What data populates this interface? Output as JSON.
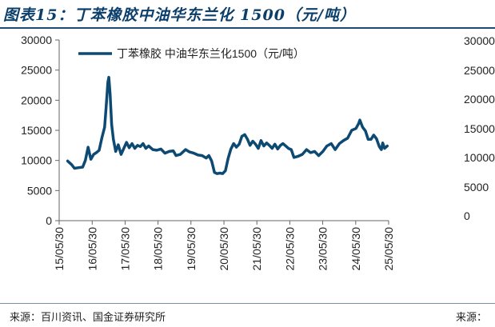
{
  "figure": {
    "title": "图表15：丁苯橡胶中油华东兰化 1500（元/吨）",
    "source_left": "来源：百川资讯、国金证券研究所",
    "source_right": "来源："
  },
  "ghost_axis": {
    "labels": [
      "30000",
      "25000",
      "20000",
      "15000",
      "10000",
      "5000",
      "0"
    ]
  },
  "chart_data": {
    "type": "line",
    "title": "",
    "xlabel": "",
    "ylabel": "",
    "ylim": [
      0,
      30000
    ],
    "xlim": [
      "2015-05-30",
      "2025-05-30"
    ],
    "yticks": [
      "0",
      "5000",
      "10000",
      "15000",
      "20000",
      "25000",
      "30000"
    ],
    "xticks": [
      "15/05/30",
      "16/05/30",
      "17/05/30",
      "18/05/30",
      "19/05/30",
      "20/05/30",
      "21/05/30",
      "22/05/30",
      "23/05/30",
      "24/05/30",
      "25/05/30"
    ],
    "grid": false,
    "legend": "top-left",
    "color": "#0d4a73",
    "series": [
      {
        "name": "丁苯橡胶 中油华东兰化1500（元/吨）",
        "points": [
          [
            "2015-09-01",
            9900
          ],
          [
            "2015-10-15",
            9300
          ],
          [
            "2015-11-15",
            8700
          ],
          [
            "2016-01-01",
            8800
          ],
          [
            "2016-02-15",
            8900
          ],
          [
            "2016-03-15",
            10000
          ],
          [
            "2016-04-15",
            12200
          ],
          [
            "2016-05-15",
            10200
          ],
          [
            "2016-06-15",
            11000
          ],
          [
            "2016-07-15",
            11300
          ],
          [
            "2016-08-15",
            11700
          ],
          [
            "2016-09-15",
            13800
          ],
          [
            "2016-10-15",
            15500
          ],
          [
            "2016-11-01",
            19000
          ],
          [
            "2016-11-20",
            23000
          ],
          [
            "2016-12-01",
            23800
          ],
          [
            "2016-12-15",
            21000
          ],
          [
            "2017-01-01",
            16000
          ],
          [
            "2017-01-20",
            13500
          ],
          [
            "2017-02-15",
            11500
          ],
          [
            "2017-03-15",
            12600
          ],
          [
            "2017-04-15",
            11000
          ],
          [
            "2017-05-15",
            12000
          ],
          [
            "2017-06-15",
            13000
          ],
          [
            "2017-07-15",
            12100
          ],
          [
            "2017-08-15",
            12800
          ],
          [
            "2017-09-15",
            12000
          ],
          [
            "2017-10-15",
            12500
          ],
          [
            "2017-11-15",
            12300
          ],
          [
            "2017-12-15",
            12800
          ],
          [
            "2018-01-15",
            12000
          ],
          [
            "2018-02-15",
            12400
          ],
          [
            "2018-04-01",
            11800
          ],
          [
            "2018-05-15",
            11700
          ],
          [
            "2018-07-01",
            11900
          ],
          [
            "2018-08-15",
            11200
          ],
          [
            "2018-10-01",
            11500
          ],
          [
            "2018-11-15",
            11600
          ],
          [
            "2018-12-15",
            10800
          ],
          [
            "2019-02-01",
            11000
          ],
          [
            "2019-04-01",
            11800
          ],
          [
            "2019-05-15",
            11400
          ],
          [
            "2019-07-01",
            11200
          ],
          [
            "2019-08-15",
            10900
          ],
          [
            "2019-10-01",
            10800
          ],
          [
            "2019-11-15",
            10400
          ],
          [
            "2019-12-15",
            10800
          ],
          [
            "2020-01-15",
            9900
          ],
          [
            "2020-02-15",
            8000
          ],
          [
            "2020-03-15",
            7800
          ],
          [
            "2020-04-15",
            7900
          ],
          [
            "2020-05-15",
            7800
          ],
          [
            "2020-06-15",
            8300
          ],
          [
            "2020-07-15",
            10300
          ],
          [
            "2020-08-15",
            11900
          ],
          [
            "2020-09-15",
            12800
          ],
          [
            "2020-10-15",
            12200
          ],
          [
            "2020-11-15",
            12700
          ],
          [
            "2020-12-15",
            14000
          ],
          [
            "2021-01-15",
            14300
          ],
          [
            "2021-02-15",
            13500
          ],
          [
            "2021-03-15",
            12500
          ],
          [
            "2021-04-15",
            13200
          ],
          [
            "2021-05-15",
            12700
          ],
          [
            "2021-06-15",
            12000
          ],
          [
            "2021-07-15",
            13300
          ],
          [
            "2021-08-15",
            12400
          ],
          [
            "2021-09-15",
            12900
          ],
          [
            "2021-10-15",
            12500
          ],
          [
            "2021-11-15",
            12000
          ],
          [
            "2021-12-15",
            12700
          ],
          [
            "2022-01-15",
            11900
          ],
          [
            "2022-02-15",
            12500
          ],
          [
            "2022-03-15",
            12800
          ],
          [
            "2022-04-15",
            12400
          ],
          [
            "2022-05-15",
            12000
          ],
          [
            "2022-06-15",
            11800
          ],
          [
            "2022-07-15",
            10500
          ],
          [
            "2022-09-01",
            10700
          ],
          [
            "2022-10-15",
            11000
          ],
          [
            "2022-12-01",
            11800
          ],
          [
            "2023-01-15",
            11300
          ],
          [
            "2023-03-01",
            11500
          ],
          [
            "2023-04-15",
            10800
          ],
          [
            "2023-06-01",
            11500
          ],
          [
            "2023-07-15",
            12400
          ],
          [
            "2023-09-01",
            12800
          ],
          [
            "2023-10-15",
            11800
          ],
          [
            "2023-12-01",
            12800
          ],
          [
            "2024-01-15",
            13300
          ],
          [
            "2024-03-01",
            13700
          ],
          [
            "2024-04-15",
            15000
          ],
          [
            "2024-06-01",
            15300
          ],
          [
            "2024-07-01",
            16100
          ],
          [
            "2024-07-15",
            16700
          ],
          [
            "2024-08-15",
            15500
          ],
          [
            "2024-09-15",
            14900
          ],
          [
            "2024-10-15",
            13500
          ],
          [
            "2024-11-15",
            13500
          ],
          [
            "2024-12-15",
            14200
          ],
          [
            "2025-01-15",
            13600
          ],
          [
            "2025-02-15",
            12300
          ],
          [
            "2025-03-10",
            11800
          ],
          [
            "2025-03-25",
            12900
          ],
          [
            "2025-04-15",
            12000
          ],
          [
            "2025-05-15",
            12400
          ]
        ]
      }
    ]
  }
}
